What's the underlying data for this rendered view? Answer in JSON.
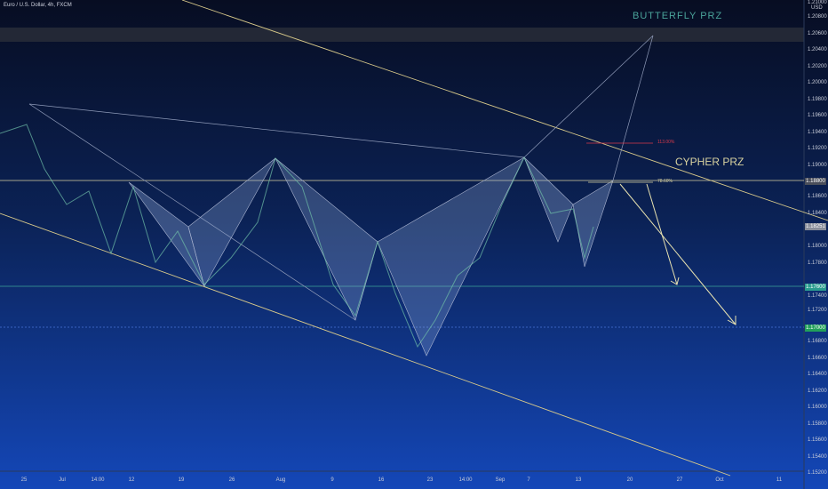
{
  "header": {
    "symbol": "Euro / U.S. Dollar, 4h, FXCM"
  },
  "price_axis": {
    "top": "1.21000",
    "currency": "USD",
    "labels": [
      "1.20800",
      "1.20600",
      "1.20400",
      "1.20200",
      "1.20000",
      "1.19800",
      "1.19600",
      "1.19400",
      "1.19200",
      "1.19000",
      "1.18600",
      "1.18400",
      "1.18000",
      "1.17800",
      "1.17400",
      "1.17200",
      "1.16800",
      "1.16600",
      "1.16400",
      "1.16200",
      "1.16000",
      "1.15800",
      "1.15600",
      "1.15400",
      "1.15200"
    ],
    "tags": [
      {
        "label": "1.18800",
        "kind": "level"
      },
      {
        "label": "1.18251",
        "kind": "price"
      },
      {
        "label": "1.17600",
        "kind": "target1"
      },
      {
        "label": "1.17000",
        "kind": "target2"
      }
    ]
  },
  "time_axis": {
    "labels": [
      "25",
      "Jul",
      "14:00",
      "12",
      "19",
      "26",
      "Aug",
      "9",
      "16",
      "23",
      "14:00",
      "Sep",
      "7",
      "13",
      "20",
      "27",
      "Oct",
      "11"
    ]
  },
  "annotations": {
    "butterfly": "BUTTERFLY  PRZ",
    "cypher": "CYPHER PRZ",
    "fib_113": "113.00%",
    "fib_786": "78.60%"
  }
}
